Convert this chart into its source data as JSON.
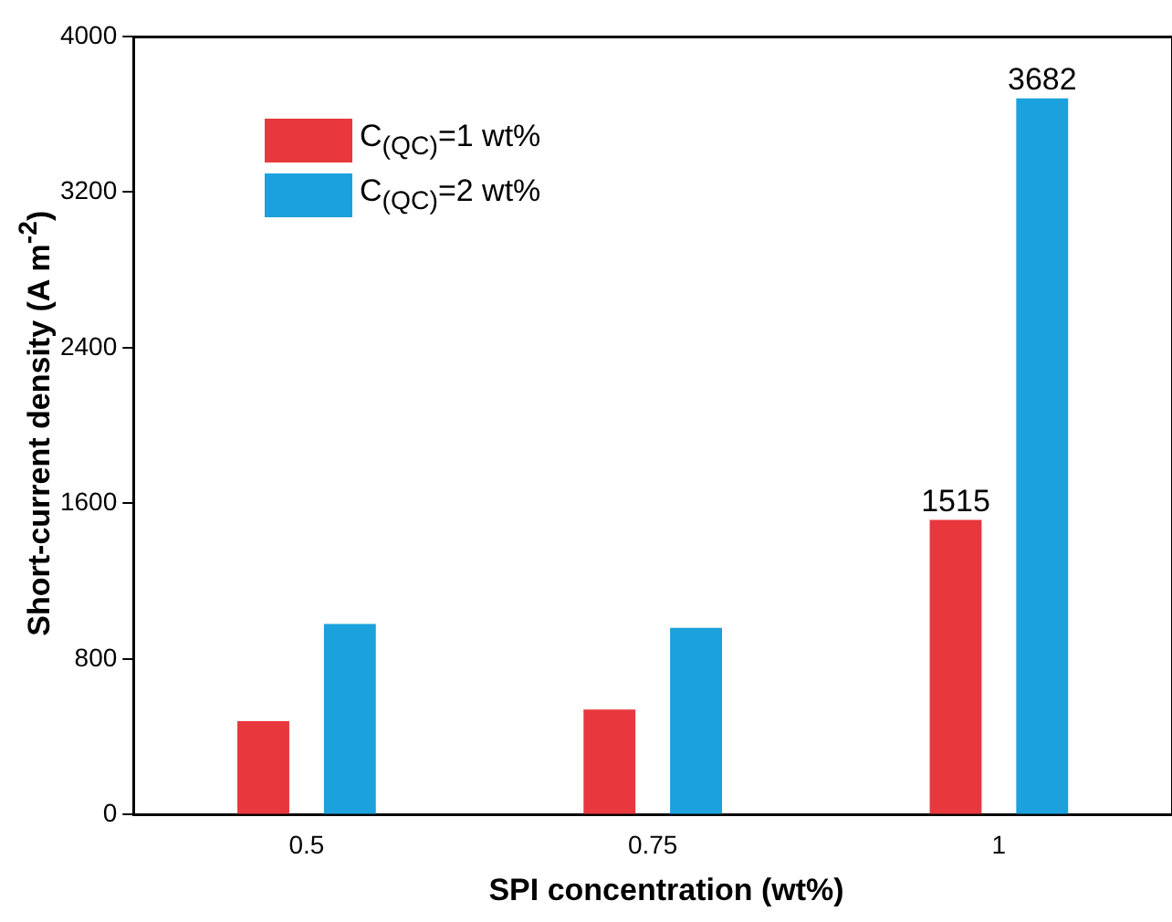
{
  "chart_data": {
    "type": "bar",
    "xlabel": "SPI concentration (wt%)",
    "ylabel": "Short-current density (A m$^{-2}$)",
    "categories": [
      "0.5",
      "0.75",
      "1"
    ],
    "series": [
      {
        "name": "C$_{(QC)}$=1 wt%",
        "color": "#e8383d",
        "values": [
          480,
          540,
          1515
        ],
        "value_labels": [
          null,
          null,
          "1515"
        ]
      },
      {
        "name": "C$_{(QC)}$=2 wt%",
        "color": "#1ba1dc",
        "values": [
          980,
          960,
          3682
        ],
        "value_labels": [
          null,
          null,
          "3682"
        ]
      }
    ],
    "ylim": [
      0,
      4000
    ],
    "yticks": [
      0,
      800,
      1600,
      2400,
      3200,
      4000
    ],
    "grid": false,
    "legend": "top left"
  }
}
